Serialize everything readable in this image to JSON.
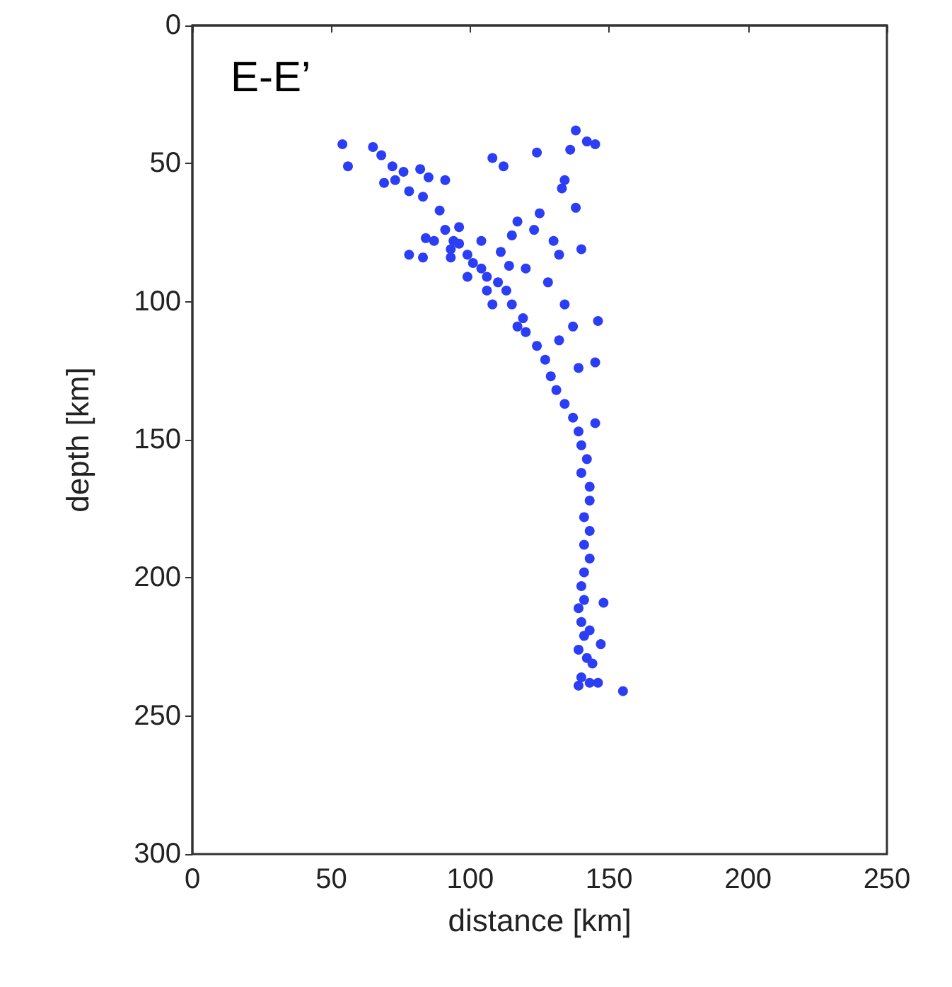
{
  "chart_data": {
    "type": "scatter",
    "xlabel": "distance [km]",
    "ylabel": "depth [km]",
    "annotations": [
      "E-E’"
    ],
    "xlim": [
      0,
      250
    ],
    "xticks": [
      0,
      50,
      100,
      150,
      200,
      250
    ],
    "ylim": [
      300,
      0
    ],
    "yticks": [
      0,
      50,
      100,
      150,
      200,
      250,
      300
    ],
    "grid": false,
    "marker": "circle",
    "series": [
      {
        "color": "#2b3df5",
        "x": [
          54,
          56,
          65,
          68,
          72,
          73,
          76,
          69,
          82,
          85,
          91,
          78,
          83,
          89,
          87,
          84,
          78,
          91,
          94,
          96,
          93,
          104,
          108,
          112,
          115,
          117,
          124,
          138,
          136,
          142,
          145,
          134,
          133,
          138,
          140,
          146,
          145,
          99,
          101,
          104,
          106,
          110,
          113,
          99,
          106,
          115,
          119,
          117,
          120,
          124,
          127,
          129,
          131,
          134,
          137,
          139,
          140,
          142,
          140,
          143,
          143,
          141,
          143,
          141,
          143,
          141,
          140,
          141,
          139,
          140,
          141,
          143,
          139,
          142,
          144,
          140,
          143,
          146,
          139,
          155,
          145,
          148,
          147,
          83,
          123,
          125,
          111,
          130,
          132,
          120,
          128,
          134,
          132,
          139,
          137,
          108,
          114,
          93,
          96
        ],
        "values": [
          43,
          51,
          44,
          47,
          51,
          56,
          53,
          57,
          52,
          55,
          56,
          60,
          62,
          67,
          78,
          77,
          83,
          74,
          78,
          73,
          84,
          78,
          48,
          51,
          76,
          71,
          46,
          38,
          45,
          42,
          43,
          56,
          59,
          66,
          81,
          107,
          122,
          83,
          86,
          88,
          91,
          93,
          96,
          91,
          96,
          101,
          106,
          109,
          111,
          116,
          121,
          127,
          132,
          137,
          142,
          147,
          152,
          157,
          162,
          167,
          172,
          178,
          183,
          188,
          193,
          198,
          203,
          208,
          211,
          216,
          221,
          219,
          226,
          229,
          231,
          236,
          238,
          238,
          239,
          241,
          144,
          209,
          224,
          84,
          74,
          68,
          82,
          78,
          83,
          88,
          93,
          101,
          114,
          124,
          109,
          101,
          87,
          81,
          79
        ]
      }
    ]
  }
}
